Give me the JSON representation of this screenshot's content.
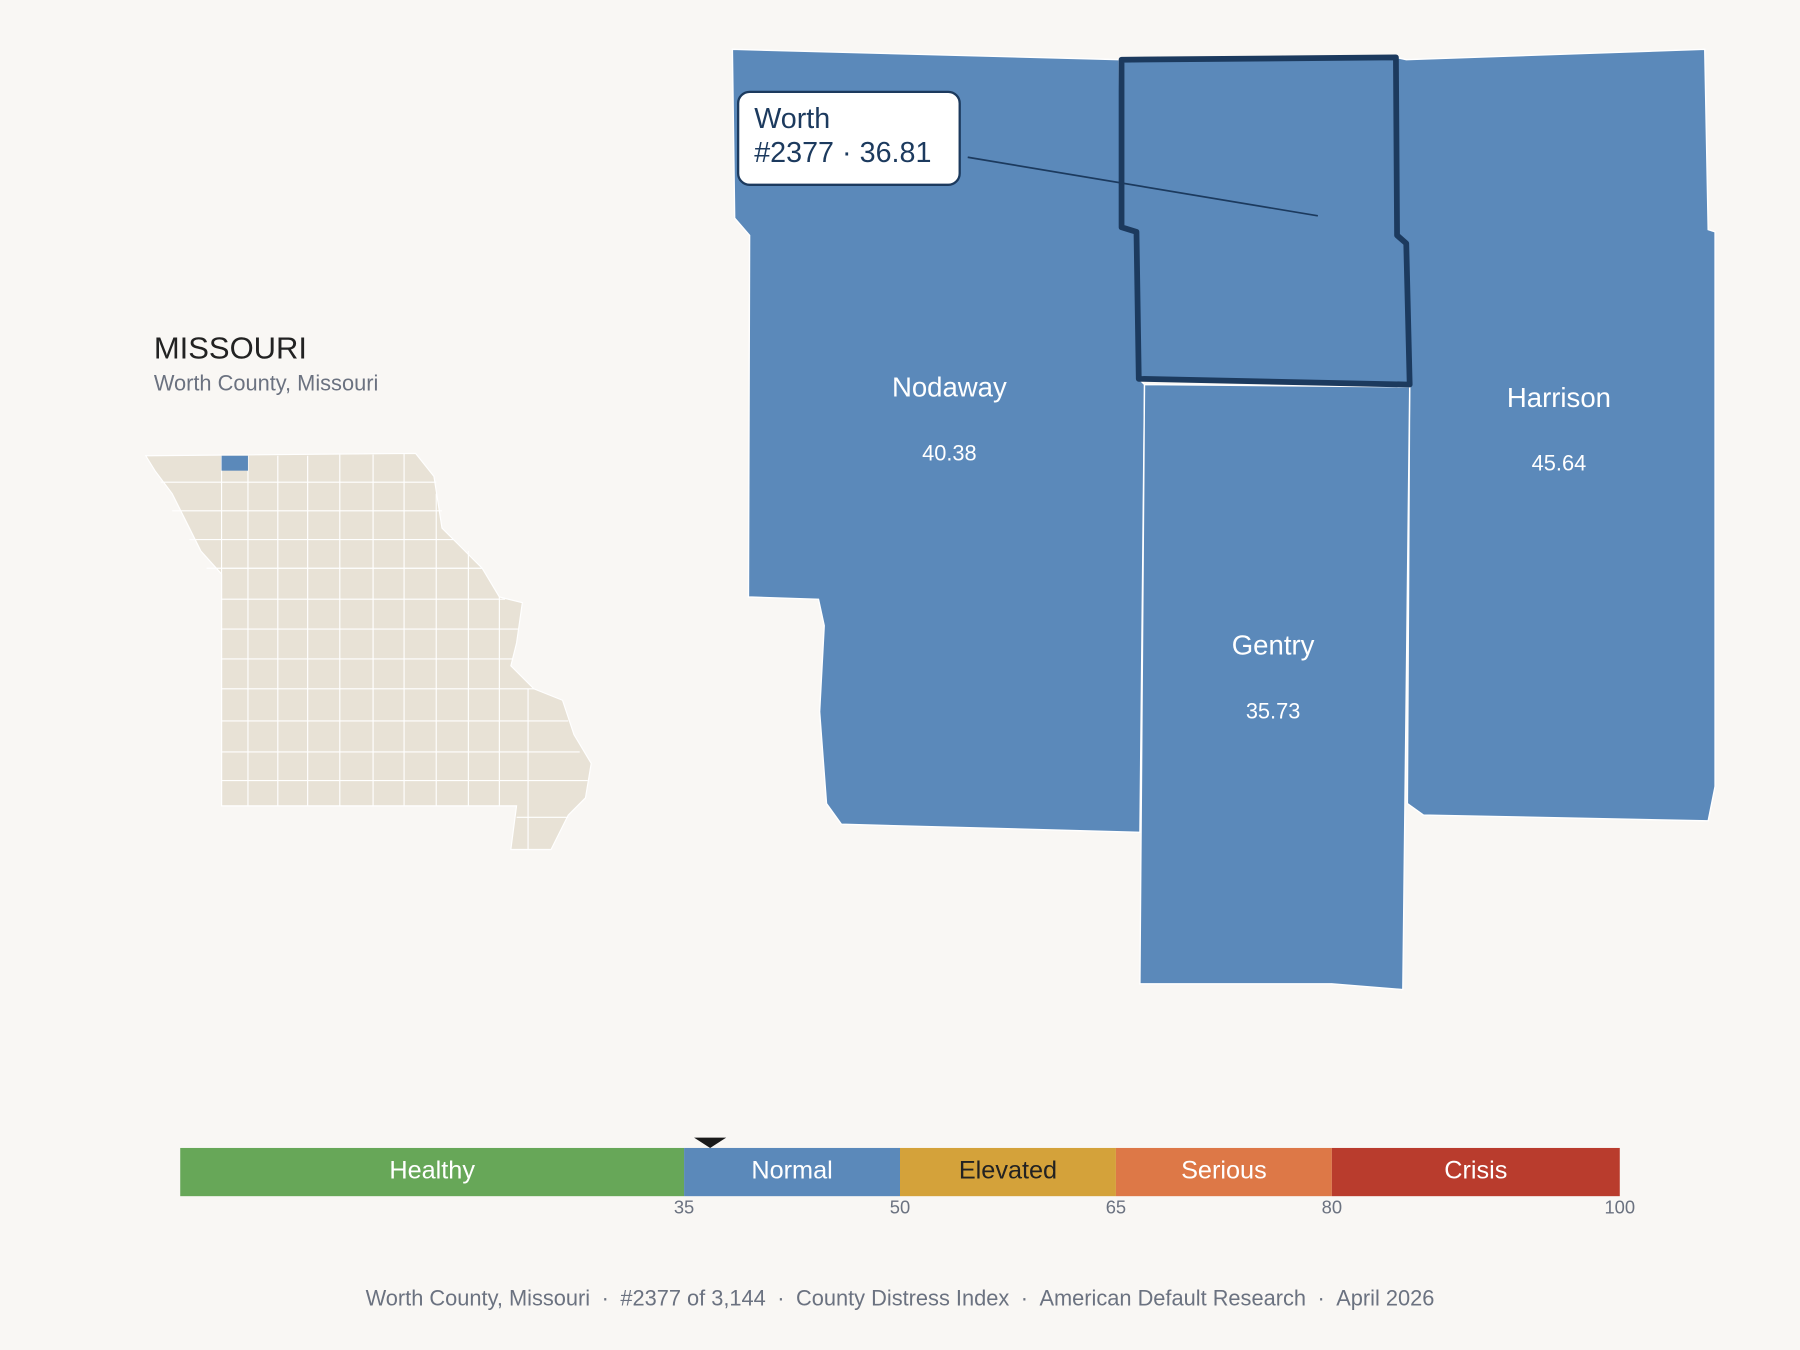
{
  "header": {
    "state": "MISSOURI",
    "subtitle": "Worth County, Missouri"
  },
  "selected": {
    "name": "Worth",
    "rank": "#2377",
    "separator": "·",
    "score": 36.81
  },
  "neighbors": [
    {
      "name": "Nodaway",
      "score": 40.38
    },
    {
      "name": "Harrison",
      "score": 45.64
    },
    {
      "name": "Gentry",
      "score": 35.73
    }
  ],
  "scale": {
    "xlim": [
      0,
      100
    ],
    "bands": [
      {
        "label": "Healthy",
        "color": "#67a758",
        "text_color": "#ffffff"
      },
      {
        "label": "Normal",
        "color": "#5b89ba",
        "text_color": "#ffffff"
      },
      {
        "label": "Elevated",
        "color": "#d4a23a",
        "text_color": "#222222"
      },
      {
        "label": "Serious",
        "color": "#dd7847",
        "text_color": "#ffffff"
      },
      {
        "label": "Crisis",
        "color": "#b93c2d",
        "text_color": "#ffffff"
      }
    ],
    "ticks": [
      35,
      50,
      65,
      80,
      100
    ]
  },
  "footer": {
    "separator": "·",
    "parts": [
      "Worth County, Missouri",
      "#2377 of 3,144",
      "County Distress Index",
      "American Default Research",
      "April 2026"
    ]
  }
}
